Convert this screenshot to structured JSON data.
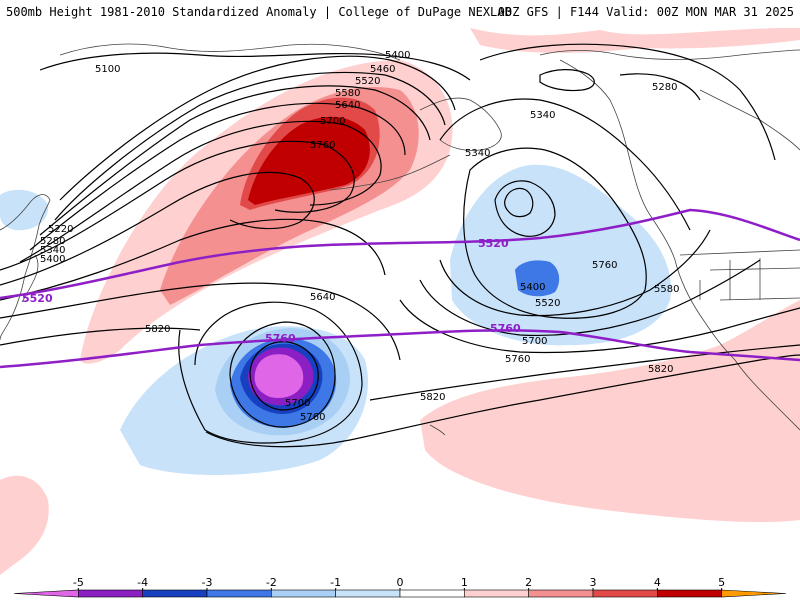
{
  "header": {
    "title_left": "500mb Height 1981-2010 Standardized Anomaly | College of DuPage NEXLAB",
    "title_right": "00Z GFS | F144 Valid: 00Z MON MAR 31 2025"
  },
  "map": {
    "height_contour_labels": [
      "5100",
      "5400",
      "5460",
      "5520",
      "5580",
      "5640",
      "5700",
      "5760",
      "5220",
      "5280",
      "5340",
      "5400",
      "5820",
      "5640",
      "5760",
      "5700",
      "5760",
      "5820",
      "5340",
      "5340",
      "5400",
      "5520",
      "5580",
      "5700",
      "5760",
      "5820",
      "5280"
    ],
    "highlight_contour_labels": [
      "5520",
      "5520",
      "5760",
      "5760"
    ],
    "colors": {
      "height_contour": "#000000",
      "highlight_contour": "#8e1fc7",
      "coastline": "#444444"
    }
  },
  "colorbar": {
    "ticks": [
      "-5",
      "-4",
      "-3",
      "-2",
      "-1",
      "0",
      "1",
      "2",
      "3",
      "4",
      "5"
    ],
    "colors": [
      "#e066e8",
      "#8c1fc4",
      "#1640c0",
      "#3d78e6",
      "#a9cff5",
      "#c8e2fa",
      "#ffffff",
      "#ffd0d0",
      "#f49090",
      "#e24a4a",
      "#c00000",
      "#ff9a00"
    ]
  }
}
